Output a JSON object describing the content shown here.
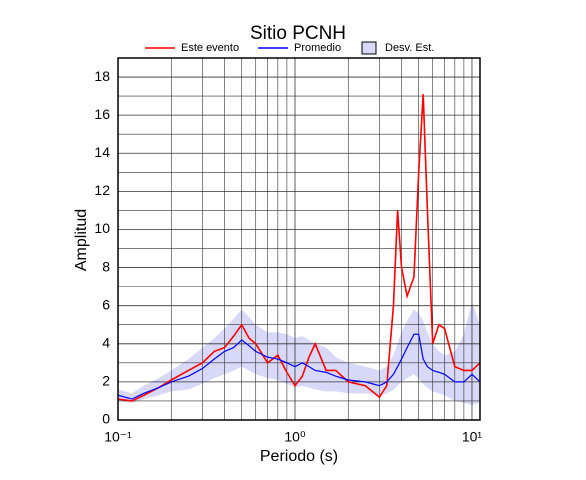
{
  "chart_data": {
    "type": "line",
    "title": "Sitio PCNH",
    "xlabel": "Periodo (s)",
    "ylabel": "Amplitud",
    "xscale": "log",
    "grid": true,
    "xlim": [
      0.1,
      11.1
    ],
    "ylim": [
      0,
      19
    ],
    "xticks": [
      {
        "value": 0.1,
        "label": "10⁻¹"
      },
      {
        "value": 1,
        "label": "10⁰"
      },
      {
        "value": 10,
        "label": "10¹"
      }
    ],
    "xminor": [
      0.2,
      0.3,
      0.4,
      0.5,
      0.6,
      0.7,
      0.8,
      0.9,
      2,
      3,
      4,
      5,
      6,
      7,
      8,
      9
    ],
    "yticks": [
      0,
      2,
      4,
      6,
      8,
      10,
      12,
      14,
      16,
      18
    ],
    "yminor": [
      1,
      3,
      5,
      7,
      9,
      11,
      13,
      15,
      17
    ],
    "x": [
      0.1,
      0.12,
      0.14,
      0.17,
      0.2,
      0.25,
      0.3,
      0.35,
      0.4,
      0.45,
      0.5,
      0.55,
      0.6,
      0.7,
      0.8,
      0.9,
      1,
      1.1,
      1.2,
      1.3,
      1.5,
      1.7,
      2,
      2.5,
      3,
      3.3,
      3.6,
      3.8,
      4,
      4.3,
      4.7,
      5,
      5.3,
      5.6,
      6,
      6.5,
      7,
      8,
      9,
      10,
      11.1
    ],
    "band": {
      "name": "Desv. Est.",
      "color": "#d8d8f8",
      "upper": [
        1.6,
        1.4,
        1.8,
        2.2,
        2.6,
        3.2,
        3.8,
        4.3,
        4.8,
        5.3,
        5.8,
        5.4,
        5.0,
        4.6,
        4.6,
        4.5,
        4.3,
        4.4,
        4.2,
        4.0,
        3.8,
        3.3,
        3.0,
        2.8,
        2.6,
        2.8,
        3.4,
        4.0,
        4.6,
        5.2,
        5.8,
        5.6,
        5.2,
        4.6,
        4.0,
        3.6,
        3.4,
        3.6,
        4.5,
        6.2,
        5.0
      ],
      "lower": [
        1.0,
        0.9,
        1.1,
        1.3,
        1.5,
        1.6,
        1.9,
        2.2,
        2.4,
        2.6,
        2.8,
        2.6,
        2.4,
        2.2,
        2.1,
        1.9,
        1.7,
        1.8,
        1.7,
        1.6,
        1.5,
        1.5,
        1.4,
        1.4,
        1.3,
        1.4,
        1.6,
        1.8,
        2.0,
        2.2,
        2.4,
        2.2,
        1.9,
        1.7,
        1.5,
        1.4,
        1.3,
        1.0,
        0.9,
        0.8,
        0.9
      ]
    },
    "series": [
      {
        "name": "Este evento",
        "color": "#ff0000",
        "values": [
          1.1,
          1.0,
          1.3,
          1.7,
          2.1,
          2.6,
          3.0,
          3.6,
          3.8,
          4.4,
          5.0,
          4.3,
          4.0,
          3.0,
          3.4,
          2.5,
          1.8,
          2.3,
          3.3,
          4.0,
          2.6,
          2.6,
          2.0,
          1.8,
          1.2,
          1.8,
          6.0,
          11.0,
          8.0,
          6.5,
          7.5,
          13,
          17.1,
          11,
          4.0,
          5.0,
          4.8,
          2.8,
          2.6,
          2.6,
          3.0
        ]
      },
      {
        "name": "Promedio",
        "color": "#0000ff",
        "values": [
          1.3,
          1.1,
          1.4,
          1.7,
          2.0,
          2.3,
          2.7,
          3.2,
          3.6,
          3.8,
          4.2,
          3.9,
          3.6,
          3.3,
          3.2,
          3.0,
          2.8,
          3.0,
          2.8,
          2.6,
          2.5,
          2.3,
          2.1,
          2.0,
          1.8,
          2.0,
          2.4,
          2.8,
          3.2,
          3.8,
          4.5,
          4.5,
          3.2,
          2.8,
          2.6,
          2.5,
          2.4,
          2.0,
          2.0,
          2.4,
          2.0
        ]
      }
    ]
  }
}
